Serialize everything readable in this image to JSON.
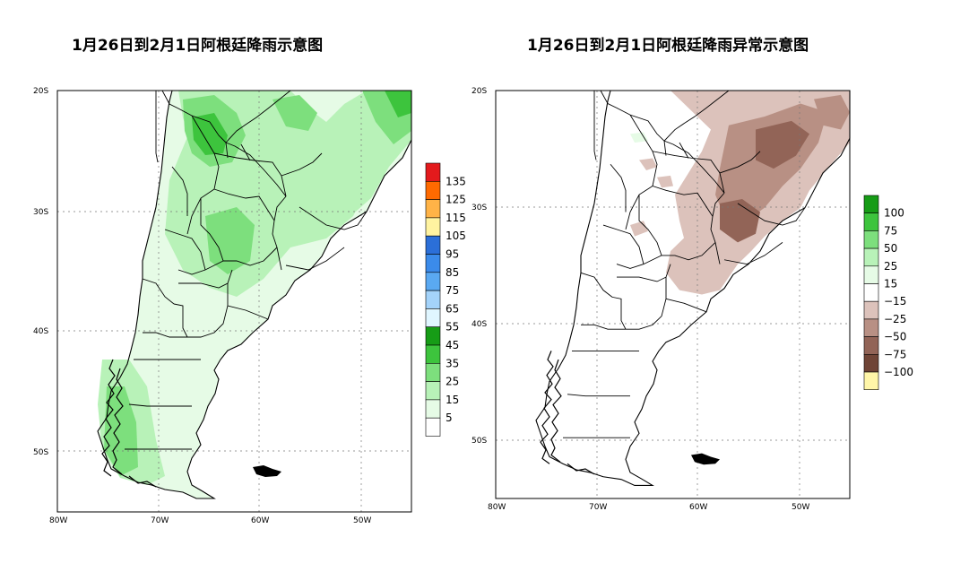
{
  "maps": [
    {
      "title": "1月26日到2月1日阿根廷降雨示意图",
      "lon_ticks": [
        "80W",
        "70W",
        "60W",
        "50W"
      ],
      "lat_ticks": [
        "20S",
        "30S",
        "40S",
        "50S"
      ],
      "colorbar": {
        "labels": [
          "135",
          "125",
          "115",
          "105",
          "95",
          "85",
          "75",
          "65",
          "55",
          "45",
          "35",
          "25",
          "15",
          "5"
        ],
        "colors": [
          "#e31a1c",
          "#ff6a00",
          "#ffb347",
          "#fff3a0",
          "#2b6fd8",
          "#3b8bea",
          "#5aa9f2",
          "#a4d3fa",
          "#e0f6ff",
          "#169c16",
          "#3dc43d",
          "#7ddf7d",
          "#b8f2b8",
          "#e6fbe6",
          "#ffffff"
        ]
      }
    },
    {
      "title": "1月26日到2月1日阿根廷降雨异常示意图",
      "lon_ticks": [
        "80W",
        "70W",
        "60W",
        "50W"
      ],
      "lat_ticks": [
        "20S",
        "30S",
        "40S",
        "50S"
      ],
      "colorbar": {
        "labels": [
          "100",
          "75",
          "50",
          "25",
          "15",
          "−15",
          "−25",
          "−50",
          "−75",
          "−100"
        ],
        "colors": [
          "#169c16",
          "#3dc43d",
          "#7ddf7d",
          "#b8f2b8",
          "#e6fbe6",
          "#ffffff",
          "#dcc2bb",
          "#b89084",
          "#926457",
          "#6f4436",
          "#fff6a8"
        ]
      }
    }
  ],
  "colors": {
    "rain_light": "#e6fbe6",
    "rain_mid": "#b8f2b8",
    "rain_strong": "#7ddf7d",
    "rain_heavy": "#3dc43d",
    "anomaly_dry1": "#dcc2bb",
    "anomaly_dry2": "#b89084",
    "anomaly_dry3": "#926457"
  }
}
